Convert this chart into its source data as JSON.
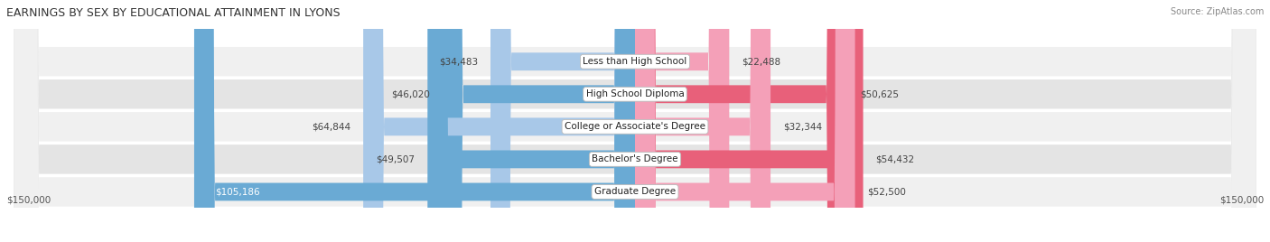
{
  "title": "EARNINGS BY SEX BY EDUCATIONAL ATTAINMENT IN LYONS",
  "source": "Source: ZipAtlas.com",
  "categories": [
    "Less than High School",
    "High School Diploma",
    "College or Associate's Degree",
    "Bachelor's Degree",
    "Graduate Degree"
  ],
  "male_values": [
    34483,
    46020,
    64844,
    49507,
    105186
  ],
  "female_values": [
    22488,
    50625,
    32344,
    54432,
    52500
  ],
  "male_color_light": "#a8c8e8",
  "male_color_dark": "#6aaad4",
  "female_color_light": "#f4a0b8",
  "female_color_dark": "#e8607a",
  "row_bg_color_odd": "#f0f0f0",
  "row_bg_color_even": "#e4e4e4",
  "max_val": 150000,
  "xlabel_left": "$150,000",
  "xlabel_right": "$150,000",
  "title_fontsize": 9,
  "source_fontsize": 7,
  "label_fontsize": 7.5,
  "value_fontsize": 7.5
}
